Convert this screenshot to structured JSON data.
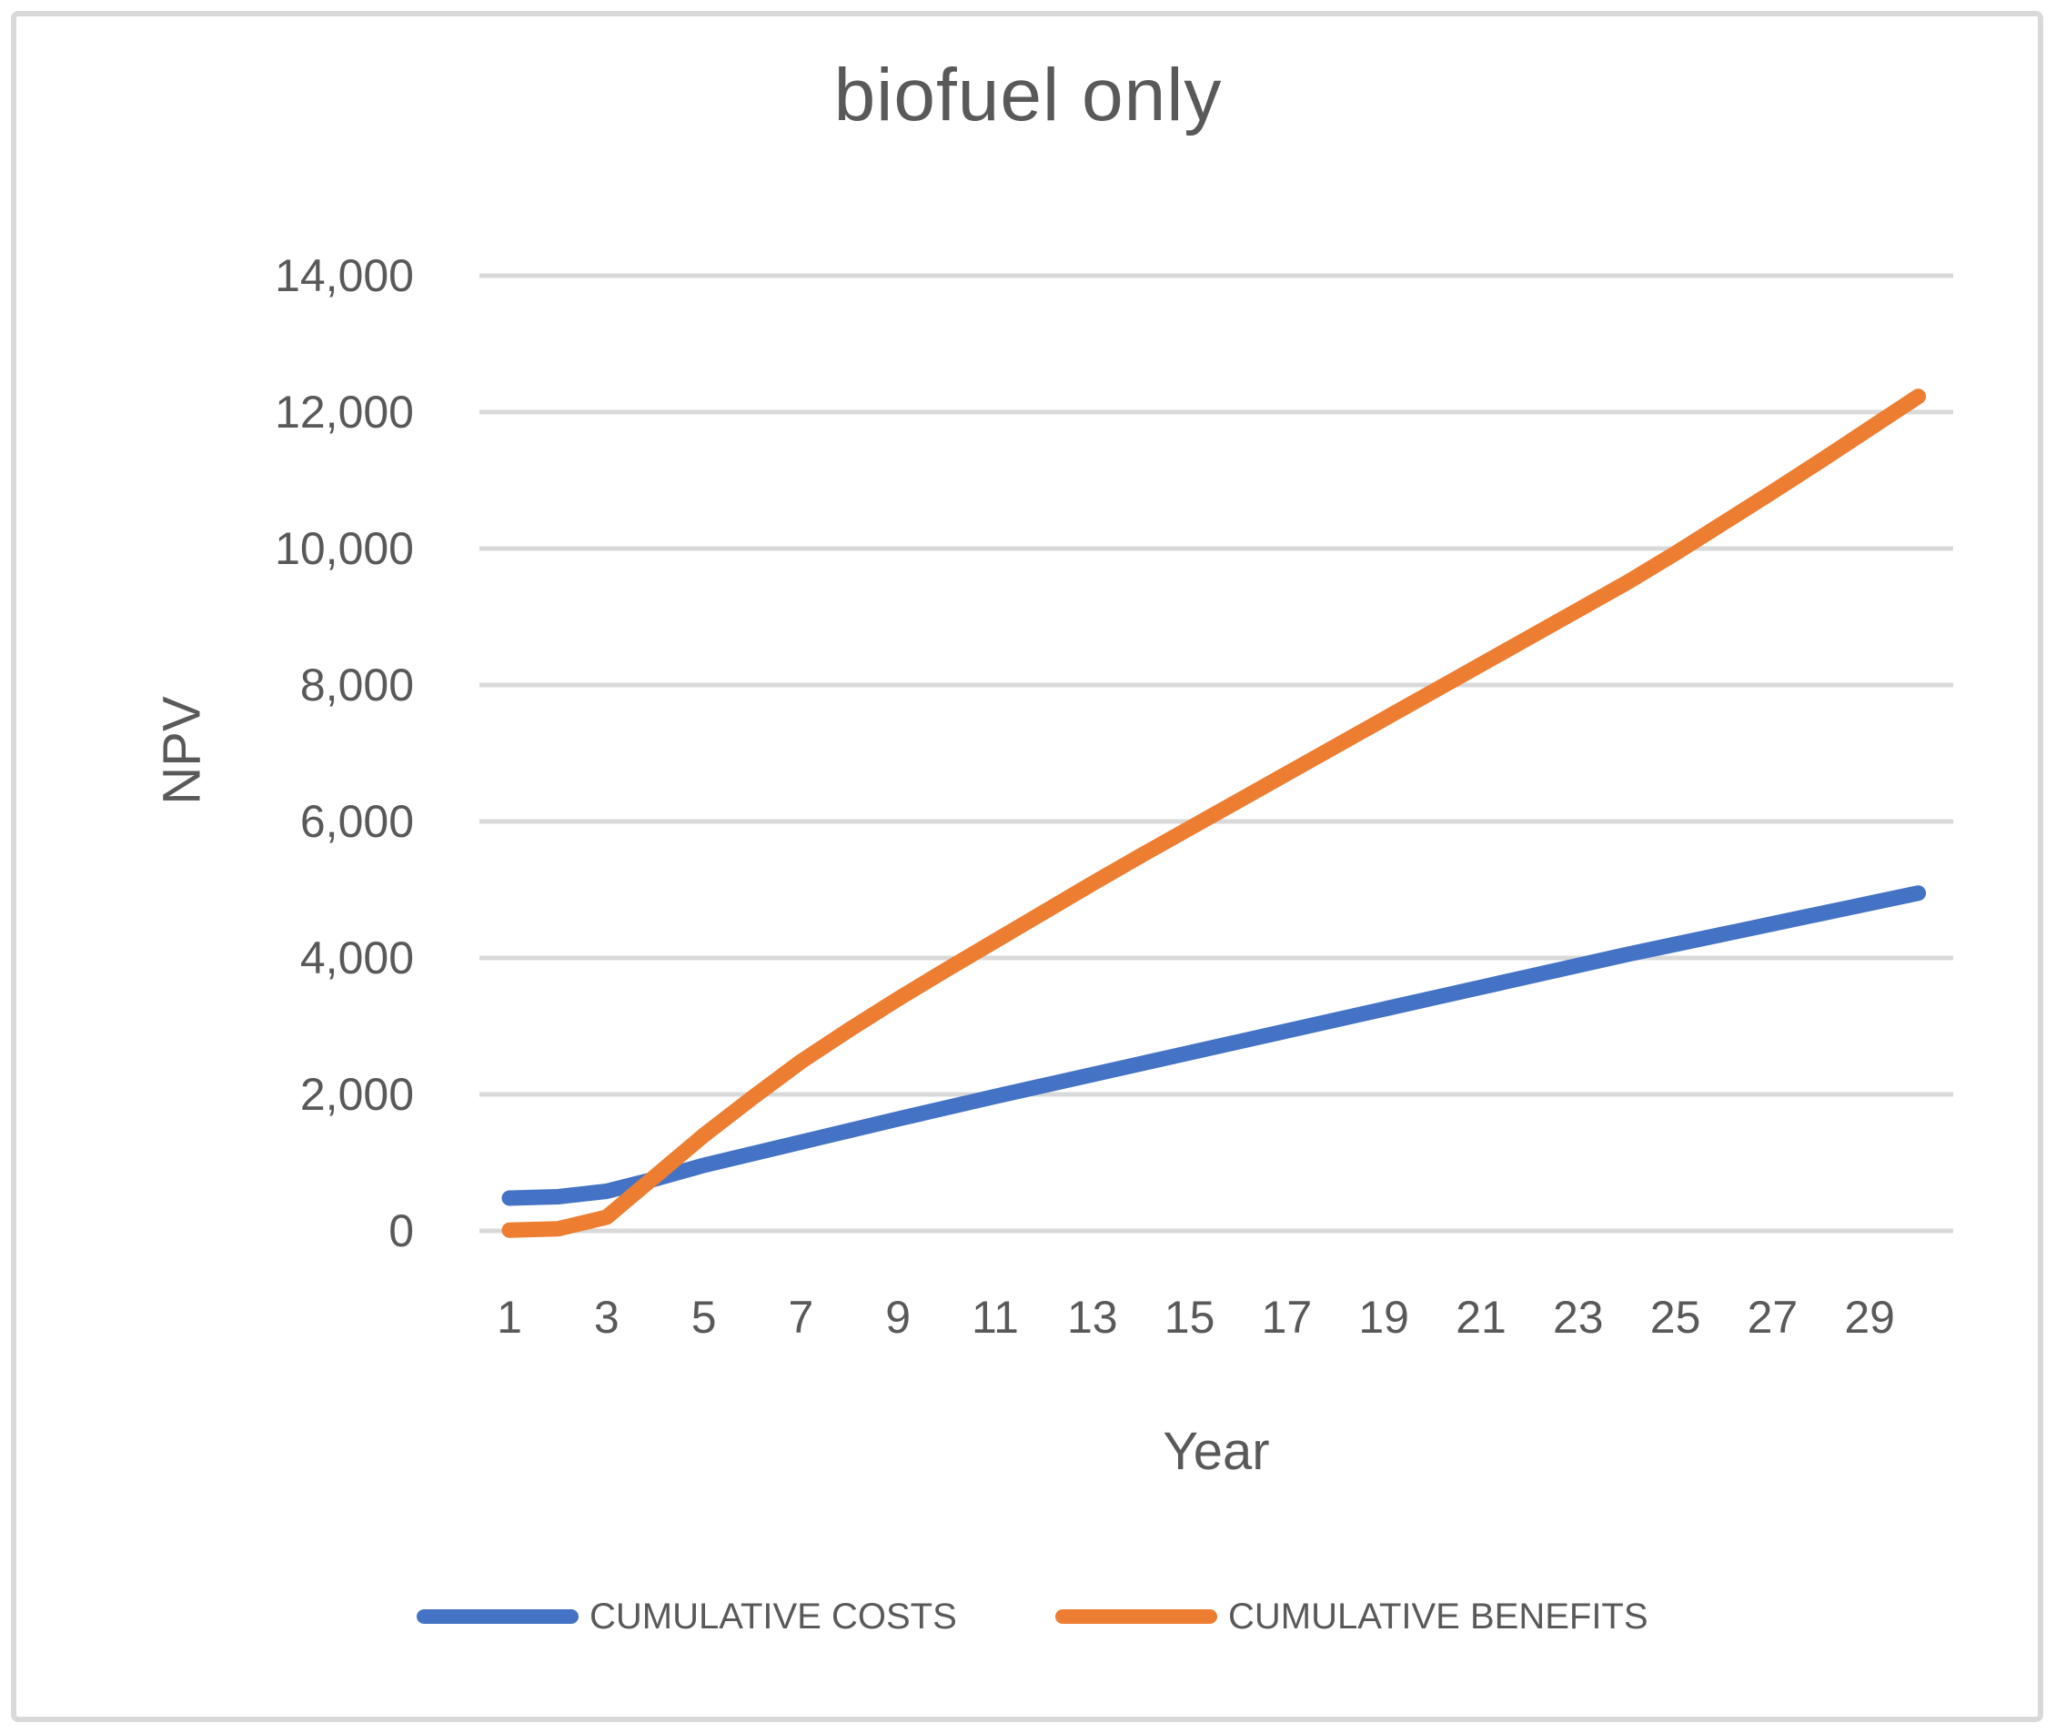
{
  "chart_data": {
    "type": "line",
    "title": "biofuel only",
    "xlabel": "Year",
    "ylabel": "NPV",
    "ylim": [
      0,
      14000
    ],
    "y_tick_values": [
      14000,
      12000,
      10000,
      8000,
      6000,
      4000,
      2000,
      0
    ],
    "y_tick_labels": [
      "14,000",
      "12,000",
      "10,000",
      "8,000",
      "6,000",
      "4,000",
      "2,000",
      "0"
    ],
    "x_tick_labels": [
      "1",
      "3",
      "5",
      "7",
      "9",
      "11",
      "13",
      "15",
      "17",
      "19",
      "21",
      "23",
      "25",
      "27",
      "29"
    ],
    "categories": [
      1,
      2,
      3,
      4,
      5,
      6,
      7,
      8,
      9,
      10,
      11,
      12,
      13,
      14,
      15,
      16,
      17,
      18,
      19,
      20,
      21,
      22,
      23,
      24,
      25,
      26,
      27,
      28,
      29,
      30
    ],
    "series": [
      {
        "name": "CUMULATIVE COSTS",
        "color": "#4472C4",
        "values": [
          480,
          500,
          580,
          760,
          960,
          1130,
          1300,
          1470,
          1640,
          1805,
          1970,
          2130,
          2290,
          2450,
          2610,
          2770,
          2930,
          3090,
          3250,
          3410,
          3570,
          3730,
          3890,
          4050,
          4200,
          4350,
          4500,
          4650,
          4800,
          4950
        ]
      },
      {
        "name": "CUMULATIVE BENEFITS",
        "color": "#ED7D31",
        "values": [
          10,
          30,
          200,
          800,
          1400,
          1950,
          2480,
          2950,
          3400,
          3830,
          4250,
          4670,
          5090,
          5500,
          5900,
          6300,
          6700,
          7100,
          7500,
          7900,
          8300,
          8700,
          9100,
          9500,
          9930,
          10380,
          10830,
          11290,
          11760,
          12230
        ]
      }
    ],
    "grid": true,
    "legend_position": "bottom",
    "gridline_color": "#D9D9D9",
    "text_color": "#595959",
    "background_color": "#FFFFFF"
  }
}
